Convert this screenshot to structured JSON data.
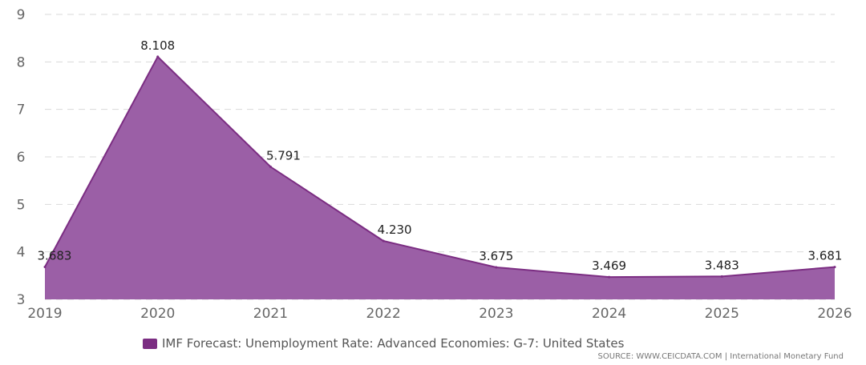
{
  "chart_data": {
    "type": "area",
    "title": "",
    "xlabel": "",
    "ylabel": "",
    "x": [
      "2019",
      "2020",
      "2021",
      "2022",
      "2023",
      "2024",
      "2025",
      "2026"
    ],
    "ylim": [
      3,
      9
    ],
    "yticks": [
      "3",
      "4",
      "5",
      "6",
      "7",
      "8",
      "9"
    ],
    "grid": true,
    "legend_position": "bottom",
    "series": [
      {
        "name": "IMF Forecast: Unemployment Rate: Advanced Economies: G-7: United States",
        "values": [
          3.683,
          8.108,
          5.791,
          4.23,
          3.675,
          3.469,
          3.483,
          3.681
        ],
        "labels": [
          "3.683",
          "8.108",
          "5.791",
          "4.230",
          "3.675",
          "3.469",
          "3.483",
          "3.681"
        ],
        "fill_color": "#9b5fa6",
        "line_color": "#7b2d82"
      }
    ]
  },
  "legend": {
    "label": "IMF Forecast: Unemployment Rate: Advanced Economies: G-7: United States",
    "color": "#7b2d82"
  },
  "source": {
    "text": "SOURCE: WWW.CEICDATA.COM | International Monetary Fund"
  }
}
